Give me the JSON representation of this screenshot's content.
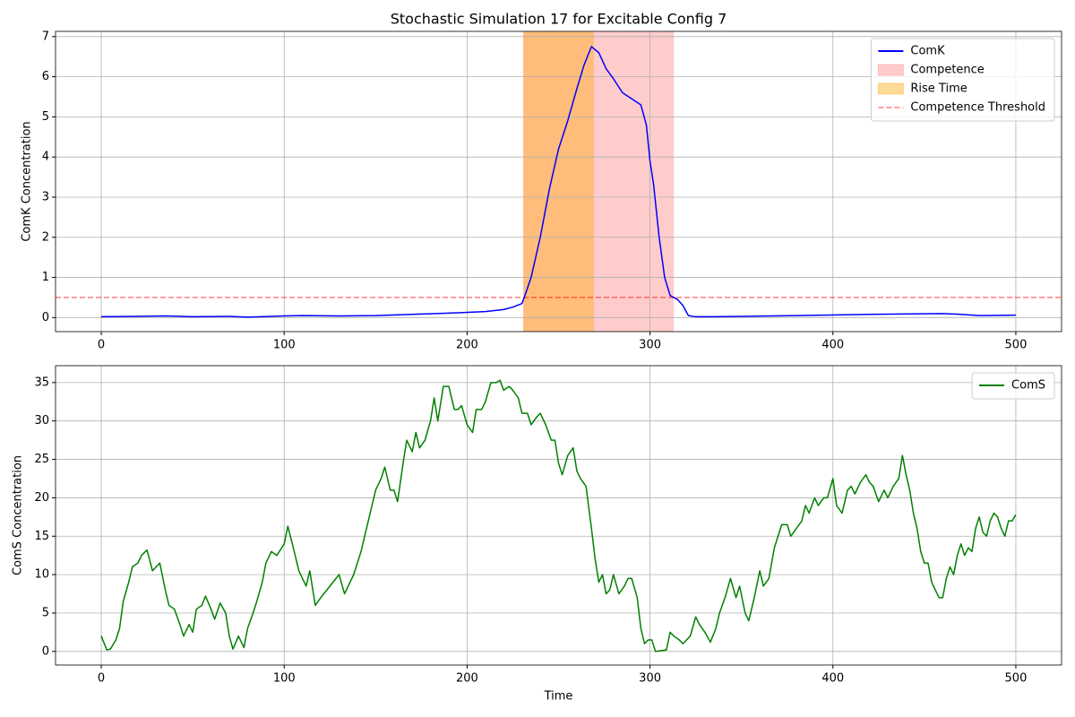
{
  "chart_data": [
    {
      "type": "line",
      "title": "Stochastic Simulation 17 for Excitable Config 7",
      "ylabel": "ComK Concentration",
      "xlim": [
        -25,
        525
      ],
      "xticks": [
        0,
        100,
        200,
        300,
        400,
        500
      ],
      "ylim": [
        -0.35,
        7.13
      ],
      "yticks": [
        0,
        1,
        2,
        3,
        4,
        5,
        6,
        7
      ],
      "grid": true,
      "legend": "upper right",
      "x": [
        0,
        20,
        35,
        50,
        70,
        80,
        100,
        110,
        130,
        150,
        170,
        190,
        210,
        220,
        225,
        230,
        232,
        235,
        240,
        245,
        250,
        255,
        260,
        264,
        268,
        272,
        276,
        280,
        285,
        290,
        295,
        298,
        300,
        302,
        305,
        308,
        311,
        315,
        318,
        321,
        325,
        335,
        350,
        380,
        420,
        460,
        470,
        480,
        500
      ],
      "series": [
        {
          "name": "ComK",
          "color": "#0000ff",
          "values": [
            0.02,
            0.03,
            0.04,
            0.02,
            0.03,
            0.01,
            0.04,
            0.05,
            0.04,
            0.05,
            0.08,
            0.11,
            0.15,
            0.2,
            0.26,
            0.35,
            0.6,
            1.0,
            2.0,
            3.2,
            4.2,
            4.9,
            5.7,
            6.3,
            6.75,
            6.6,
            6.2,
            5.95,
            5.6,
            5.45,
            5.3,
            4.8,
            3.9,
            3.3,
            2.0,
            1.0,
            0.55,
            0.45,
            0.3,
            0.05,
            0.02,
            0.02,
            0.03,
            0.05,
            0.08,
            0.1,
            0.08,
            0.05,
            0.06
          ]
        }
      ],
      "spans": [
        {
          "name": "Competence",
          "start": 230.7,
          "end": 313,
          "color": "red",
          "alpha": 0.2
        },
        {
          "name": "Rise Time",
          "start": 230.7,
          "end": 269.3,
          "color": "orange",
          "alpha": 0.4
        }
      ],
      "hline": {
        "name": "Competence Threshold",
        "value": 0.5,
        "color": "red",
        "alpha": 0.5
      }
    },
    {
      "type": "line",
      "xlabel": "Time",
      "ylabel": "ComS Concentration",
      "xlim": [
        -25,
        525
      ],
      "xticks": [
        0,
        100,
        200,
        300,
        400,
        500
      ],
      "ylim": [
        -1.77,
        37.2
      ],
      "yticks": [
        0,
        5,
        10,
        15,
        20,
        25,
        30,
        35
      ],
      "grid": true,
      "legend": "upper right",
      "x": [
        0,
        3,
        5,
        8,
        10,
        12,
        15,
        17,
        20,
        22,
        25,
        28,
        30,
        32,
        35,
        37,
        40,
        43,
        45,
        48,
        50,
        52,
        55,
        57,
        60,
        62,
        65,
        68,
        70,
        72,
        75,
        78,
        80,
        83,
        85,
        88,
        90,
        93,
        96,
        100,
        102,
        105,
        108,
        112,
        114,
        117,
        120,
        125,
        130,
        133,
        135,
        138,
        142,
        145,
        148,
        150,
        153,
        155,
        158,
        160,
        162,
        165,
        167,
        170,
        172,
        174,
        177,
        180,
        182,
        184,
        187,
        190,
        193,
        195,
        197,
        200,
        203,
        205,
        208,
        210,
        213,
        216,
        218,
        220,
        223,
        225,
        228,
        230,
        233,
        235,
        238,
        240,
        243,
        246,
        248,
        250,
        252,
        255,
        258,
        260,
        262,
        265,
        268,
        270,
        272,
        274,
        276,
        278,
        280,
        283,
        286,
        288,
        290,
        293,
        295,
        297,
        299,
        301,
        303,
        306,
        309,
        311,
        313,
        316,
        318,
        320,
        322,
        325,
        327,
        330,
        333,
        336,
        338,
        341,
        344,
        347,
        349,
        352,
        354,
        357,
        360,
        362,
        365,
        368,
        370,
        372,
        375,
        377,
        380,
        383,
        385,
        387,
        390,
        392,
        395,
        397,
        400,
        402,
        405,
        408,
        410,
        412,
        415,
        418,
        420,
        422,
        425,
        428,
        430,
        433,
        436,
        438,
        440,
        442,
        444,
        446,
        448,
        450,
        452,
        454,
        456,
        458,
        460,
        462,
        464,
        466,
        468,
        470,
        472,
        474,
        476,
        478,
        480,
        482,
        484,
        486,
        488,
        490,
        492,
        494,
        496,
        498,
        500
      ],
      "series": [
        {
          "name": "ComS",
          "color": "#008000",
          "values": [
            2,
            0.2,
            0.3,
            1.5,
            3,
            6.5,
            9,
            11,
            11.5,
            12.5,
            13.2,
            10.5,
            11,
            11.5,
            8,
            6,
            5.5,
            3.5,
            2,
            3.5,
            2.5,
            5.5,
            6,
            7.2,
            5.5,
            4.2,
            6.3,
            5,
            2,
            0.3,
            2,
            0.5,
            3,
            5,
            6.5,
            9,
            11.5,
            13,
            12.5,
            14,
            16.3,
            13.5,
            10.5,
            8.5,
            10.5,
            6,
            7,
            8.5,
            10,
            7.5,
            8.5,
            10,
            13,
            16,
            19,
            21,
            22.5,
            24,
            21,
            21,
            19.5,
            24.5,
            27.5,
            26,
            28.5,
            26.5,
            27.5,
            30,
            33,
            30,
            34.5,
            34.5,
            31.5,
            31.5,
            32,
            29.5,
            28.5,
            31.5,
            31.5,
            32.5,
            35,
            35,
            35.3,
            34,
            34.5,
            34,
            33,
            31,
            31,
            29.5,
            30.5,
            31,
            29.5,
            27.5,
            27.5,
            24.5,
            23,
            25.5,
            26.5,
            23.5,
            22.5,
            21.5,
            16,
            12,
            9,
            10,
            7.5,
            8,
            10,
            7.5,
            8.5,
            9.5,
            9.5,
            7,
            3,
            1,
            1.5,
            1.5,
            0,
            0.1,
            0.2,
            2.5,
            2,
            1.5,
            1,
            1.5,
            2,
            4.5,
            3.5,
            2.5,
            1.2,
            3,
            5,
            7,
            9.5,
            7,
            8.5,
            5,
            4,
            7,
            10.5,
            8.5,
            9.5,
            13.5,
            15,
            16.5,
            16.5,
            15,
            16,
            17,
            19,
            18,
            20,
            19,
            20,
            20,
            22.5,
            19,
            18,
            21,
            21.5,
            20.5,
            22,
            23,
            22,
            21.5,
            19.5,
            21,
            20,
            21.5,
            22.5,
            25.5,
            23,
            21,
            18,
            16,
            13,
            11.5,
            11.5,
            9,
            8,
            7,
            7,
            9.5,
            11,
            10,
            12.5,
            14,
            12.5,
            13.5,
            13,
            16,
            17.5,
            15.5,
            15,
            17,
            18,
            17.5,
            16,
            15,
            17,
            17,
            17.8
          ]
        }
      ]
    }
  ]
}
